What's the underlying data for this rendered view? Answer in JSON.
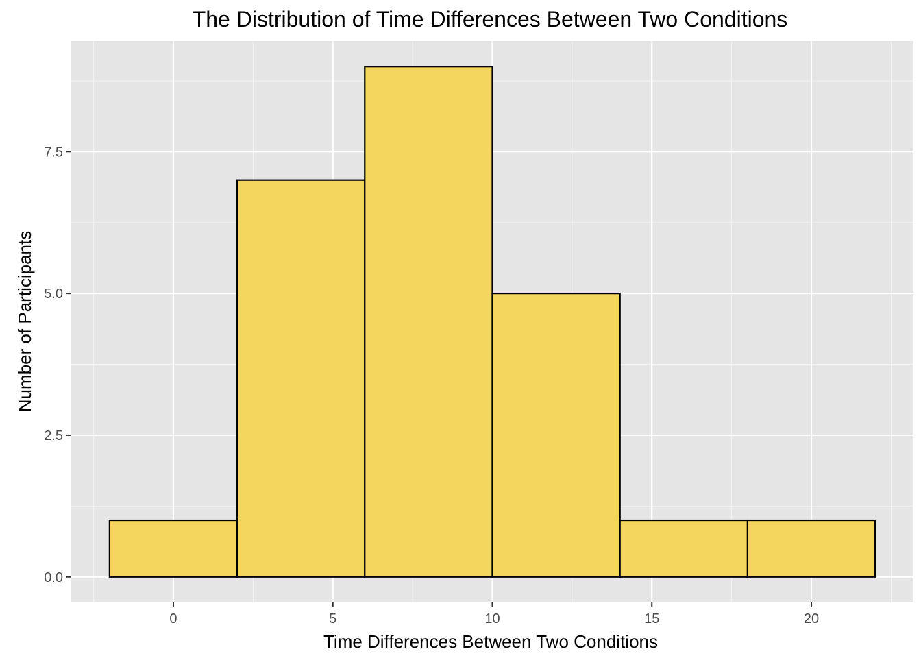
{
  "chart_data": {
    "type": "bar",
    "subtype": "histogram",
    "title": "The Distribution of Time Differences Between Two Conditions",
    "xlabel": "Time Differences Between Two Conditions",
    "ylabel": "Number of Participants",
    "bins": [
      {
        "x0": -2,
        "x1": 2,
        "count": 1
      },
      {
        "x0": 2,
        "x1": 6,
        "count": 7
      },
      {
        "x0": 6,
        "x1": 10,
        "count": 9
      },
      {
        "x0": 10,
        "x1": 14,
        "count": 5
      },
      {
        "x0": 14,
        "x1": 18,
        "count": 1
      },
      {
        "x0": 18,
        "x1": 22,
        "count": 1
      }
    ],
    "xlim": [
      -3.2,
      23.2
    ],
    "ylim": [
      -0.45,
      9.45
    ],
    "x_ticks": [
      0,
      5,
      10,
      15,
      20
    ],
    "x_tick_labels": [
      "0",
      "5",
      "10",
      "15",
      "20"
    ],
    "y_ticks": [
      0,
      2.5,
      5,
      7.5
    ],
    "y_tick_labels": [
      "0.0",
      "2.5",
      "5.0",
      "7.5"
    ],
    "x_minor_ticks": [
      -2.5,
      2.5,
      7.5,
      12.5,
      17.5,
      22.5
    ],
    "y_minor_ticks": [
      1.25,
      3.75,
      6.25,
      8.75
    ],
    "grid": true,
    "colors": {
      "bar_fill": "#f4d65e",
      "bar_outline": "#000000",
      "panel_background": "#e5e5e5",
      "grid": "#ffffff"
    }
  }
}
